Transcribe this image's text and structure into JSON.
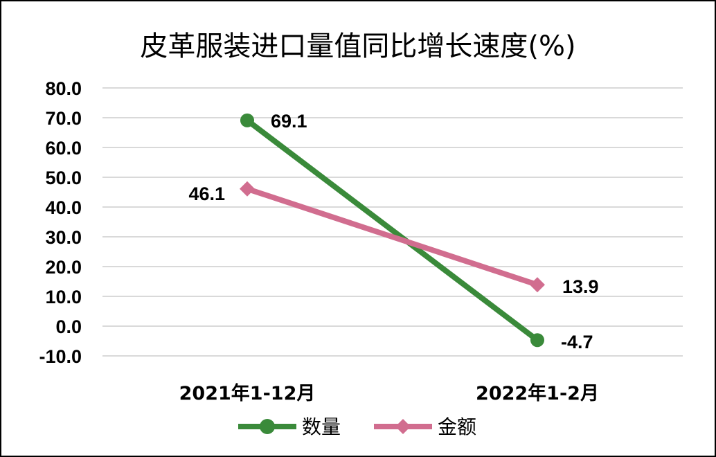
{
  "chart_data": {
    "type": "line",
    "title": "皮革服装进口量值同比增长速度(%)",
    "categories": [
      "2021年1-12月",
      "2022年1-2月"
    ],
    "ylim": [
      -10,
      80
    ],
    "yticks": [
      "-10.0",
      "0.0",
      "10.0",
      "20.0",
      "30.0",
      "40.0",
      "50.0",
      "60.0",
      "70.0",
      "80.0"
    ],
    "grid": true,
    "legend": "bottom",
    "series": [
      {
        "name": "数量",
        "values": [
          69.1,
          -4.7
        ],
        "labels": [
          "69.1",
          "-4.7"
        ],
        "color": "#3a8a3a",
        "marker": "circle"
      },
      {
        "name": "金额",
        "values": [
          46.1,
          13.9
        ],
        "labels": [
          "46.1",
          "13.9"
        ],
        "color": "#d16d8f",
        "marker": "diamond"
      }
    ]
  }
}
